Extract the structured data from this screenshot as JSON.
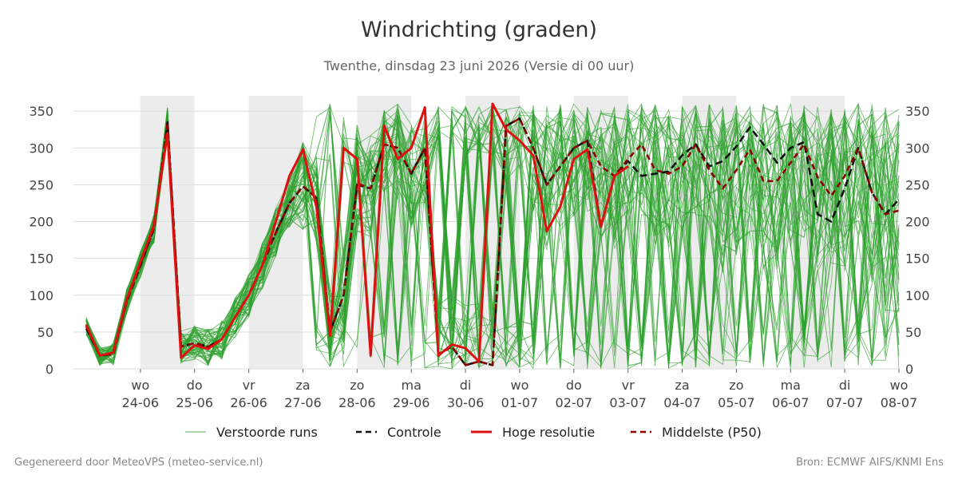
{
  "footer": {
    "left": "Gegenereerd door MeteoVPS (meteo-service.nl)",
    "right": "Bron: ECMWF AIFS/KNMI Ens"
  },
  "chart_data": {
    "type": "line",
    "title": "Windrichting (graden)",
    "subtitle": "Twenthe, dinsdag 23 juni 2026 (Versie di 00 uur)",
    "ylim": [
      0,
      360
    ],
    "yticks": [
      0,
      50,
      100,
      150,
      200,
      250,
      300,
      350
    ],
    "x_unit": "hours since 23-06 00:00",
    "xlim": [
      0,
      360
    ],
    "x_ticks": [
      {
        "x": 24,
        "day": "wo",
        "date": "24-06"
      },
      {
        "x": 48,
        "day": "do",
        "date": "25-06"
      },
      {
        "x": 72,
        "day": "vr",
        "date": "26-06"
      },
      {
        "x": 96,
        "day": "za",
        "date": "27-06"
      },
      {
        "x": 120,
        "day": "zo",
        "date": "28-06"
      },
      {
        "x": 144,
        "day": "ma",
        "date": "29-06"
      },
      {
        "x": 168,
        "day": "di",
        "date": "30-06"
      },
      {
        "x": 192,
        "day": "wo",
        "date": "01-07"
      },
      {
        "x": 216,
        "day": "do",
        "date": "02-07"
      },
      {
        "x": 240,
        "day": "vr",
        "date": "03-07"
      },
      {
        "x": 264,
        "day": "za",
        "date": "04-07"
      },
      {
        "x": 288,
        "day": "zo",
        "date": "05-07"
      },
      {
        "x": 312,
        "day": "ma",
        "date": "06-07"
      },
      {
        "x": 336,
        "day": "di",
        "date": "07-07"
      },
      {
        "x": 360,
        "day": "wo",
        "date": "08-07"
      }
    ],
    "shaded_bands": [
      [
        24,
        48
      ],
      [
        72,
        96
      ],
      [
        120,
        144
      ],
      [
        168,
        192
      ],
      [
        216,
        240
      ],
      [
        264,
        288
      ],
      [
        312,
        336
      ]
    ],
    "grid": true,
    "legend_position": "bottom",
    "legend": [
      {
        "label": "Verstoorde runs",
        "color": "#2ca02c",
        "style": "thin"
      },
      {
        "label": "Controle",
        "color": "#111111",
        "style": "dashed"
      },
      {
        "label": "Hoge resolutie",
        "color": "#dd1111",
        "style": "solid"
      },
      {
        "label": "Middelste (P50)",
        "color": "#8b0000",
        "style": "dashed"
      }
    ],
    "series": [
      {
        "name": "Hoge resolutie",
        "color": "#dd1111",
        "x": [
          0,
          6,
          12,
          18,
          24,
          30,
          36,
          42,
          48,
          54,
          60,
          66,
          72,
          78,
          84,
          90,
          96,
          102,
          108,
          114,
          120,
          126,
          132,
          138,
          144,
          150,
          156,
          162,
          168,
          174,
          180,
          186,
          192,
          198,
          204,
          210,
          216,
          222,
          228,
          234,
          240
        ],
        "y": [
          60,
          18,
          22,
          95,
          145,
          195,
          320,
          15,
          32,
          27,
          40,
          70,
          100,
          140,
          200,
          262,
          298,
          220,
          45,
          300,
          285,
          18,
          330,
          285,
          300,
          355,
          18,
          33,
          28,
          10,
          360,
          325,
          310,
          290,
          187,
          220,
          285,
          298,
          193,
          262,
          275
        ]
      },
      {
        "name": "Controle",
        "color": "#111111",
        "x": [
          0,
          6,
          12,
          18,
          24,
          30,
          36,
          42,
          48,
          54,
          60,
          66,
          72,
          78,
          84,
          90,
          96,
          102,
          108,
          114,
          120,
          126,
          132,
          138,
          144,
          150,
          156,
          162,
          168,
          174,
          180,
          186,
          192,
          198,
          204,
          210,
          216,
          222,
          228,
          234,
          240,
          246,
          252,
          258,
          264,
          270,
          276,
          282,
          288,
          294,
          300,
          306,
          312,
          318,
          324,
          330,
          336,
          342,
          348,
          354,
          360
        ],
        "y": [
          55,
          18,
          20,
          92,
          140,
          190,
          335,
          30,
          35,
          30,
          40,
          70,
          100,
          140,
          185,
          225,
          248,
          232,
          50,
          100,
          250,
          245,
          305,
          300,
          265,
          300,
          20,
          30,
          5,
          10,
          5,
          330,
          340,
          300,
          250,
          275,
          300,
          310,
          193,
          262,
          282,
          262,
          265,
          268,
          290,
          305,
          275,
          282,
          302,
          328,
          305,
          280,
          300,
          308,
          210,
          200,
          245,
          300,
          240,
          210,
          230
        ]
      },
      {
        "name": "Middelste (P50)",
        "color": "#8b0000",
        "x": [
          0,
          6,
          12,
          18,
          24,
          30,
          36,
          42,
          48,
          54,
          60,
          66,
          72,
          78,
          84,
          90,
          96,
          102,
          108,
          114,
          120,
          126,
          132,
          138,
          144,
          150,
          156,
          162,
          168,
          174,
          180,
          186,
          192,
          198,
          204,
          210,
          216,
          222,
          228,
          234,
          240,
          246,
          252,
          258,
          264,
          270,
          276,
          282,
          288,
          294,
          300,
          306,
          312,
          318,
          324,
          330,
          336,
          342,
          348,
          354,
          360
        ],
        "y": [
          58,
          18,
          20,
          92,
          142,
          190,
          335,
          30,
          35,
          30,
          40,
          70,
          100,
          140,
          185,
          225,
          248,
          232,
          50,
          100,
          252,
          245,
          305,
          300,
          265,
          300,
          20,
          30,
          5,
          10,
          5,
          330,
          340,
          300,
          250,
          275,
          300,
          310,
          275,
          262,
          285,
          305,
          270,
          265,
          275,
          305,
          270,
          245,
          270,
          298,
          255,
          255,
          280,
          305,
          260,
          235,
          262,
          300,
          240,
          210,
          215
        ]
      }
    ]
  }
}
